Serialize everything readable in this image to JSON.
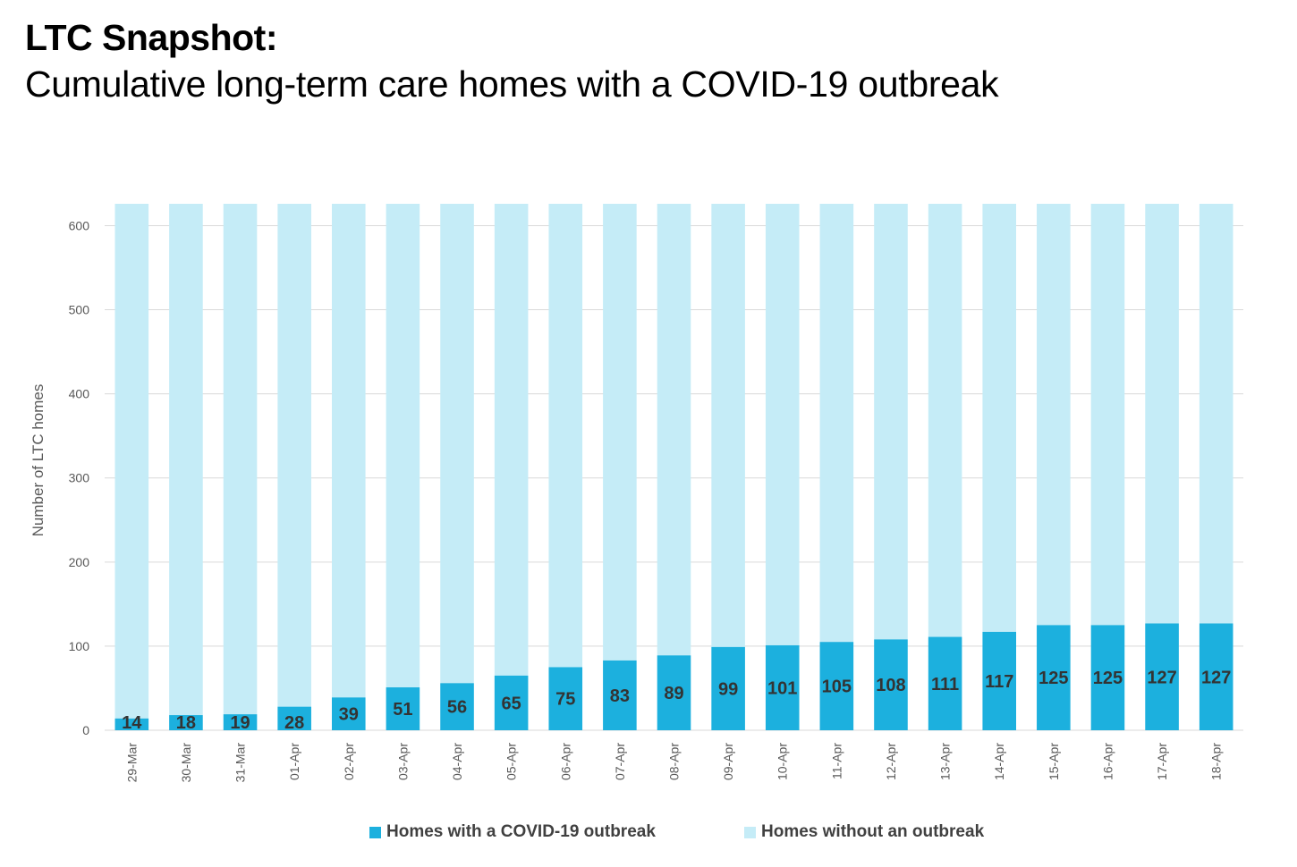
{
  "title": "LTC Snapshot:",
  "subtitle": "Cumulative long-term care homes with a COVID-19 outbreak",
  "colors": {
    "outbreak": "#1cb0de",
    "no_outbreak": "#c5ecf7",
    "grid": "#d9d9d9",
    "text": "#595959"
  },
  "chart_data": {
    "type": "bar",
    "stacked": true,
    "categories": [
      "29-Mar",
      "30-Mar",
      "31-Mar",
      "01-Apr",
      "02-Apr",
      "03-Apr",
      "04-Apr",
      "05-Apr",
      "06-Apr",
      "07-Apr",
      "08-Apr",
      "09-Apr",
      "10-Apr",
      "11-Apr",
      "12-Apr",
      "13-Apr",
      "14-Apr",
      "15-Apr",
      "16-Apr",
      "17-Apr",
      "18-Apr"
    ],
    "series": [
      {
        "name": "Homes with a COVID-19 outbreak",
        "values": [
          14,
          18,
          19,
          28,
          39,
          51,
          56,
          65,
          75,
          83,
          89,
          99,
          101,
          105,
          108,
          111,
          117,
          125,
          125,
          127,
          127
        ]
      },
      {
        "name": "Homes without an outbreak",
        "values": [
          612,
          608,
          607,
          598,
          587,
          575,
          570,
          561,
          551,
          543,
          537,
          527,
          525,
          521,
          518,
          515,
          509,
          501,
          501,
          499,
          499
        ]
      }
    ],
    "ylabel": "Number of LTC homes",
    "xlabel": "",
    "ylim": [
      0,
      626
    ],
    "yticks": [
      0,
      100,
      200,
      300,
      400,
      500,
      600
    ],
    "grid": true,
    "legend": "bottom"
  }
}
